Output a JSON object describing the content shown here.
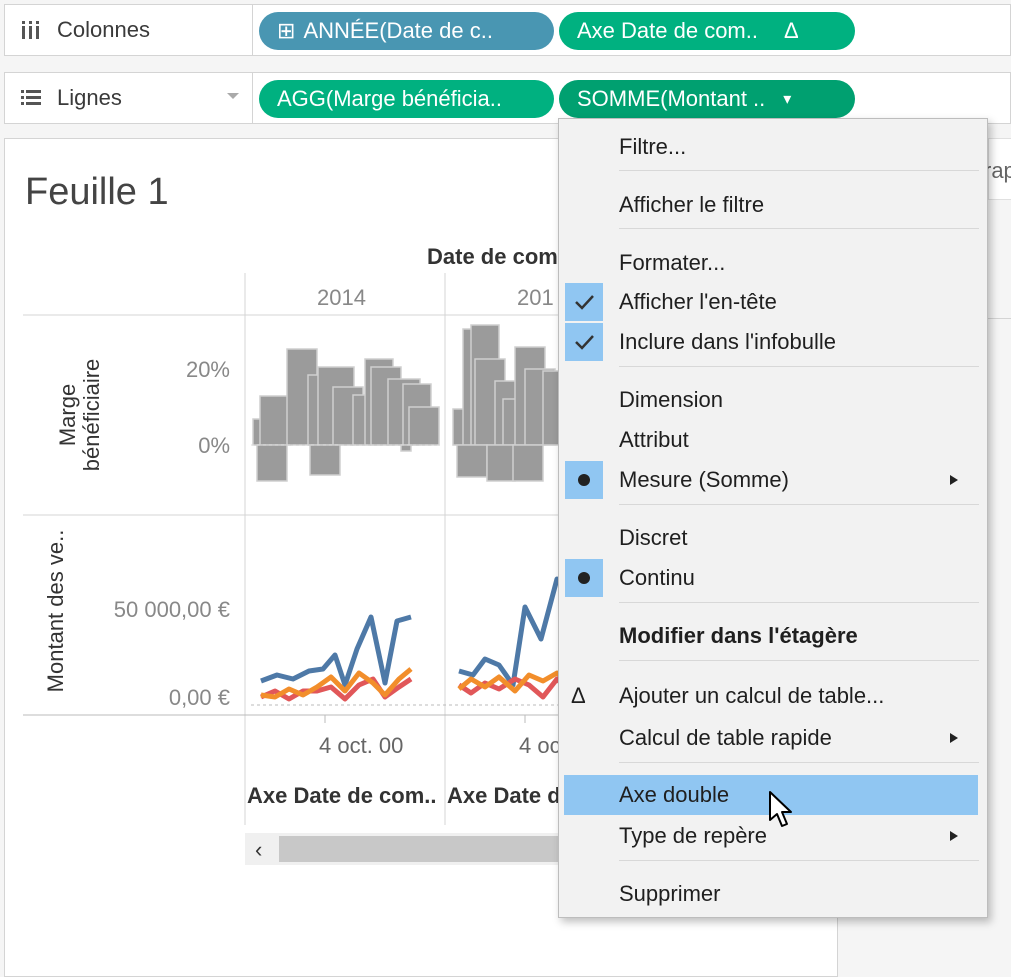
{
  "shelves": {
    "columns": {
      "label": "Colonnes",
      "icon": "columns-icon",
      "pills": [
        {
          "label": "ANNÉE(Date de c..",
          "prefix": "⊞"
        },
        {
          "label": "Axe Date de com..",
          "suffix": "Δ"
        }
      ]
    },
    "rows": {
      "label": "Lignes",
      "icon": "rows-icon",
      "pills": [
        {
          "label": "AGG(Marge bénéficia.."
        },
        {
          "label": "SOMME(Montant ..",
          "suffix": "▾"
        }
      ]
    }
  },
  "sheet": {
    "title": "Feuille 1",
    "column_header": "Date de com",
    "years": [
      "2014",
      "201"
    ],
    "row_header_top": [
      "Marge",
      "bénéficiaire"
    ],
    "row_header_bottom": "Montant des ve..",
    "top_axis_ticks": [
      "20%",
      "0%"
    ],
    "bottom_axis_ticks": [
      "50 000,00 €",
      "0,00 €"
    ],
    "x_axis_ticks": [
      "4 oct. 00",
      "4 oc"
    ],
    "x_axis_titles": [
      "Axe Date de com..",
      "Axe Date d"
    ],
    "scroll_left": "‹",
    "side_cut_label": "rap"
  },
  "colors": {
    "bar": "#9b9b9b",
    "blue_line": "#4e79a7",
    "orange_line": "#f28e2b",
    "red_line": "#e15759",
    "menu_highlight": "#90c6f2"
  },
  "menu": {
    "items": [
      {
        "label": "Filtre..."
      },
      {
        "label": "Afficher le filtre"
      },
      {
        "label": "Formater..."
      },
      {
        "label": "Afficher l'en-tête",
        "mark": "✓"
      },
      {
        "label": "Inclure dans l'infobulle",
        "mark": "✓"
      },
      {
        "label": "Dimension"
      },
      {
        "label": "Attribut"
      },
      {
        "label": "Mesure (Somme)",
        "mark": "●",
        "submenu": "▶"
      },
      {
        "label": "Discret"
      },
      {
        "label": "Continu",
        "mark": "●"
      },
      {
        "label": "Modifier dans l'étagère"
      },
      {
        "label": "Ajouter un calcul de table...",
        "icon": "Δ"
      },
      {
        "label": "Calcul de table rapide",
        "submenu": "▶"
      },
      {
        "label": "Axe double"
      },
      {
        "label": "Type de repère",
        "submenu": "▶"
      },
      {
        "label": "Supprimer"
      }
    ]
  }
}
